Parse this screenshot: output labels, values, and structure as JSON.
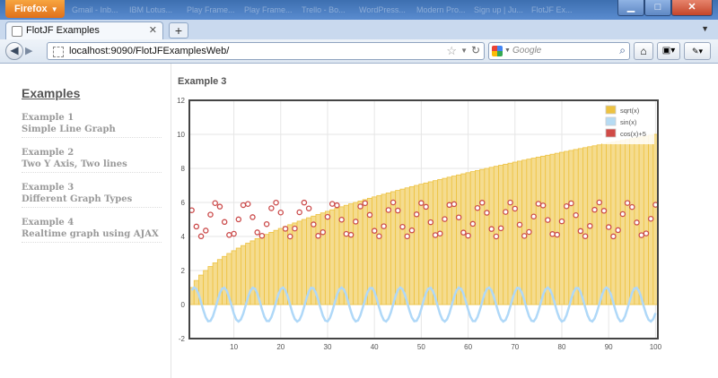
{
  "browser": {
    "menu_label": "Firefox",
    "background_tabs": [
      "Gmail - Inb...",
      "IBM Lotus...",
      "Play Frame...",
      "Play Frame...",
      "Trello - Bo...",
      "WordPress...",
      "Modern Pro...",
      "Sign up | Ju...",
      "FlotJF Ex..."
    ],
    "active_tab_title": "FlotJF Examples",
    "url": "localhost:9090/FlotJFExamplesWeb/",
    "search_placeholder": "Google"
  },
  "sidebar": {
    "title": "Examples",
    "items": [
      {
        "number": "Example 1",
        "label": "Simple Line Graph"
      },
      {
        "number": "Example 2",
        "label": "Two Y Axis, Two lines"
      },
      {
        "number": "Example 3",
        "label": "Different Graph Types"
      },
      {
        "number": "Example 4",
        "label": "Realtime graph using AJAX"
      }
    ]
  },
  "main": {
    "title": "Example 3"
  },
  "chart_data": {
    "type": "bar",
    "x_range": [
      1,
      100
    ],
    "ylim": [
      -2,
      12
    ],
    "x_ticks": [
      10,
      20,
      30,
      40,
      50,
      60,
      70,
      80,
      90,
      100
    ],
    "y_ticks": [
      -2,
      0,
      2,
      4,
      6,
      8,
      10,
      12
    ],
    "grid": true,
    "legend_position": "top-right",
    "series": [
      {
        "name": "sqrt(x)",
        "type": "bar",
        "color": "#edc240",
        "formula": "sqrt(x)"
      },
      {
        "name": "sin(x)",
        "type": "line",
        "color": "#afd8f8",
        "formula": "sin(x)"
      },
      {
        "name": "cos(x)+5",
        "type": "points",
        "color": "#cb4b4b",
        "formula": "cos(x)+5"
      }
    ]
  }
}
